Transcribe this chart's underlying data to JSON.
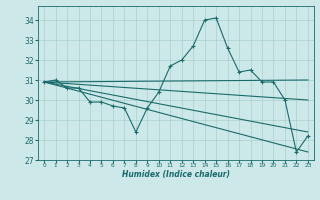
{
  "xlabel": "Humidex (Indice chaleur)",
  "background_color": "#cde8e8",
  "line_color": "#1a6b6b",
  "grid_color": "#a8d0ce",
  "xlim": [
    -0.5,
    23.5
  ],
  "ylim": [
    27,
    34.7
  ],
  "yticks": [
    27,
    28,
    29,
    30,
    31,
    32,
    33,
    34
  ],
  "xticks": [
    0,
    1,
    2,
    3,
    4,
    5,
    6,
    7,
    8,
    9,
    10,
    11,
    12,
    13,
    14,
    15,
    16,
    17,
    18,
    19,
    20,
    21,
    22,
    23
  ],
  "line1_x": [
    0,
    1,
    2,
    3,
    4,
    5,
    6,
    7,
    8,
    9,
    10,
    11,
    12,
    13,
    14,
    15,
    16,
    17,
    18,
    19,
    20,
    21,
    22,
    23
  ],
  "line1_y": [
    30.9,
    31.0,
    30.6,
    30.6,
    29.9,
    29.9,
    29.7,
    29.6,
    28.4,
    29.6,
    30.4,
    31.7,
    32.0,
    32.7,
    34.0,
    34.1,
    32.6,
    31.4,
    31.5,
    30.9,
    30.9,
    30.0,
    27.4,
    28.2
  ],
  "line2_x": [
    0,
    23
  ],
  "line2_y": [
    30.9,
    31.0
  ],
  "line3_x": [
    0,
    23
  ],
  "line3_y": [
    30.9,
    30.0
  ],
  "line4_x": [
    0,
    23
  ],
  "line4_y": [
    30.9,
    28.4
  ],
  "line5_x": [
    0,
    23
  ],
  "line5_y": [
    30.9,
    27.4
  ]
}
